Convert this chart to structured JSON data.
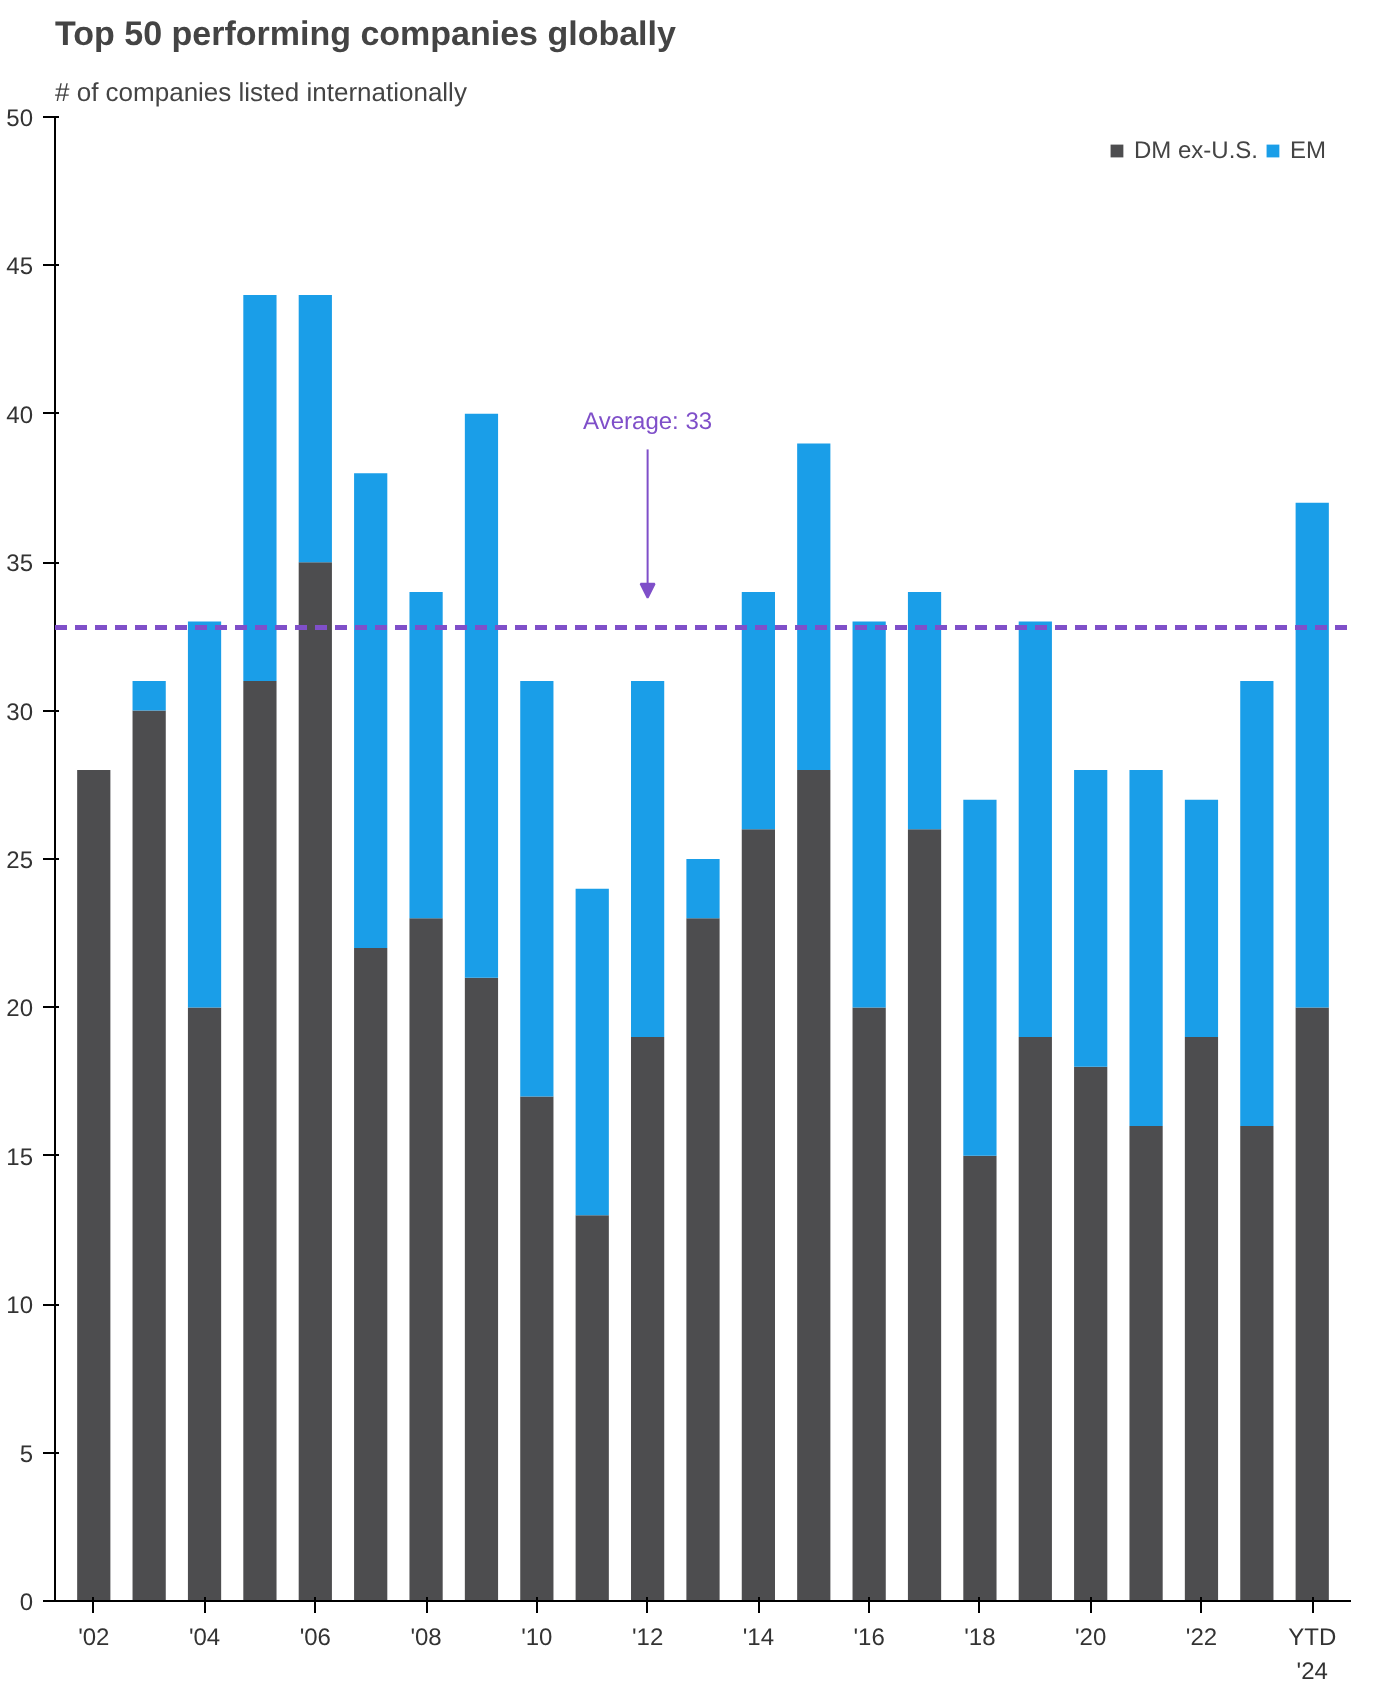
{
  "chart_data": {
    "type": "bar",
    "stacked": true,
    "title": "Top 50 performing companies globally",
    "subtitle": "# of companies listed internationally",
    "categories": [
      "'02",
      null,
      "'04",
      null,
      "'06",
      null,
      "'08",
      null,
      "'10",
      null,
      "'12",
      null,
      "'14",
      null,
      "'16",
      null,
      "'18",
      null,
      "'20",
      null,
      "'22",
      null,
      "YTD\n'24"
    ],
    "series": [
      {
        "name": "DM ex-U.S.",
        "color": "#4d4d4f",
        "values": [
          28,
          30,
          20,
          31,
          35,
          22,
          23,
          21,
          17,
          13,
          19,
          23,
          26,
          28,
          20,
          26,
          15,
          19,
          18,
          16,
          19,
          16,
          20
        ]
      },
      {
        "name": "EM",
        "color": "#1a9ee8",
        "values": [
          0,
          1,
          13,
          13,
          9,
          16,
          11,
          19,
          14,
          11,
          12,
          2,
          8,
          11,
          13,
          8,
          12,
          14,
          10,
          12,
          8,
          15,
          17
        ]
      }
    ],
    "ylim": [
      0,
      50
    ],
    "yticks": [
      0,
      5,
      10,
      15,
      20,
      25,
      30,
      35,
      40,
      45,
      50
    ],
    "ref_lines": [
      {
        "axis": "y",
        "value": 32.8,
        "label": "Average: 33",
        "color": "#7f4fc9",
        "line_style": "dashed"
      }
    ],
    "legend": "top right",
    "grid": false
  }
}
